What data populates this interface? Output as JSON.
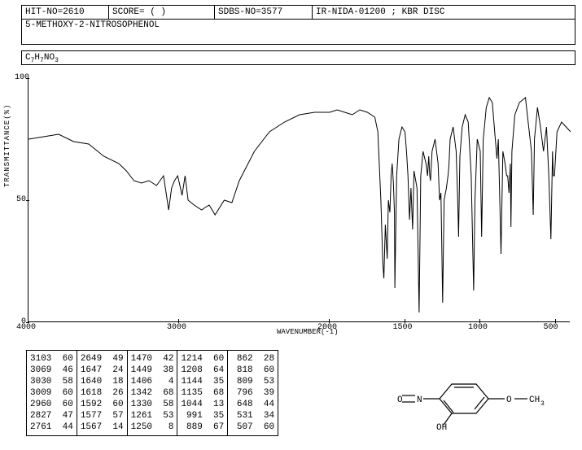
{
  "header": {
    "hit_no": "HIT-NO=2610",
    "score": "SCORE=   (   )",
    "sdbs_no": "SDBS-NO=3577",
    "method": "IR-NIDA-01200 ; KBR DISC"
  },
  "compound_name": "5-METHOXY-2-NITROSOPHENOL",
  "formula": {
    "text": "C7H7NO3",
    "c": "C",
    "c_n": "7",
    "h": "H",
    "h_n": "7",
    "n": "N",
    "o": "O",
    "o_n": "3"
  },
  "chart": {
    "type": "line",
    "xlabel": "WAVENUMBER(-1)",
    "ylabel": "TRANSMITTANCE(%)",
    "xlim": [
      4000,
      400
    ],
    "ylim": [
      0,
      100
    ],
    "yticks": [
      0,
      50,
      100
    ],
    "xticks": [
      4000,
      3000,
      2000,
      1500,
      1000,
      500
    ],
    "line_color": "#000000",
    "background_color": "#ffffff",
    "points": [
      [
        4000,
        75
      ],
      [
        3900,
        76
      ],
      [
        3800,
        77
      ],
      [
        3700,
        74
      ],
      [
        3600,
        73
      ],
      [
        3500,
        68
      ],
      [
        3400,
        65
      ],
      [
        3350,
        62
      ],
      [
        3300,
        58
      ],
      [
        3250,
        57
      ],
      [
        3200,
        58
      ],
      [
        3150,
        56
      ],
      [
        3103,
        60
      ],
      [
        3069,
        46
      ],
      [
        3050,
        55
      ],
      [
        3030,
        58
      ],
      [
        3009,
        60
      ],
      [
        2980,
        52
      ],
      [
        2960,
        60
      ],
      [
        2940,
        50
      ],
      [
        2900,
        48
      ],
      [
        2850,
        46
      ],
      [
        2827,
        47
      ],
      [
        2800,
        48
      ],
      [
        2761,
        44
      ],
      [
        2700,
        50
      ],
      [
        2649,
        49
      ],
      [
        2600,
        58
      ],
      [
        2500,
        70
      ],
      [
        2400,
        78
      ],
      [
        2300,
        82
      ],
      [
        2200,
        85
      ],
      [
        2100,
        86
      ],
      [
        2000,
        86
      ],
      [
        1950,
        87
      ],
      [
        1900,
        86
      ],
      [
        1850,
        85
      ],
      [
        1800,
        87
      ],
      [
        1750,
        86
      ],
      [
        1700,
        84
      ],
      [
        1680,
        78
      ],
      [
        1660,
        50
      ],
      [
        1647,
        24
      ],
      [
        1640,
        18
      ],
      [
        1630,
        40
      ],
      [
        1618,
        26
      ],
      [
        1610,
        50
      ],
      [
        1600,
        45
      ],
      [
        1592,
        60
      ],
      [
        1585,
        65
      ],
      [
        1577,
        57
      ],
      [
        1570,
        45
      ],
      [
        1567,
        14
      ],
      [
        1555,
        60
      ],
      [
        1540,
        75
      ],
      [
        1520,
        80
      ],
      [
        1500,
        78
      ],
      [
        1490,
        70
      ],
      [
        1480,
        60
      ],
      [
        1470,
        42
      ],
      [
        1460,
        55
      ],
      [
        1449,
        38
      ],
      [
        1440,
        62
      ],
      [
        1420,
        55
      ],
      [
        1406,
        4
      ],
      [
        1395,
        60
      ],
      [
        1380,
        70
      ],
      [
        1360,
        65
      ],
      [
        1350,
        60
      ],
      [
        1342,
        68
      ],
      [
        1335,
        60
      ],
      [
        1330,
        58
      ],
      [
        1320,
        70
      ],
      [
        1300,
        75
      ],
      [
        1280,
        65
      ],
      [
        1270,
        50
      ],
      [
        1261,
        53
      ],
      [
        1255,
        30
      ],
      [
        1250,
        8
      ],
      [
        1240,
        50
      ],
      [
        1225,
        55
      ],
      [
        1214,
        60
      ],
      [
        1208,
        64
      ],
      [
        1200,
        75
      ],
      [
        1180,
        80
      ],
      [
        1160,
        70
      ],
      [
        1150,
        50
      ],
      [
        1144,
        35
      ],
      [
        1140,
        50
      ],
      [
        1135,
        68
      ],
      [
        1120,
        80
      ],
      [
        1100,
        85
      ],
      [
        1080,
        82
      ],
      [
        1060,
        60
      ],
      [
        1050,
        30
      ],
      [
        1044,
        13
      ],
      [
        1035,
        50
      ],
      [
        1020,
        75
      ],
      [
        1000,
        70
      ],
      [
        991,
        35
      ],
      [
        980,
        75
      ],
      [
        960,
        88
      ],
      [
        940,
        92
      ],
      [
        920,
        90
      ],
      [
        900,
        75
      ],
      [
        889,
        67
      ],
      [
        880,
        75
      ],
      [
        870,
        50
      ],
      [
        862,
        28
      ],
      [
        850,
        70
      ],
      [
        835,
        65
      ],
      [
        825,
        60
      ],
      [
        818,
        60
      ],
      [
        809,
        53
      ],
      [
        800,
        65
      ],
      [
        796,
        39
      ],
      [
        790,
        70
      ],
      [
        770,
        85
      ],
      [
        740,
        90
      ],
      [
        700,
        92
      ],
      [
        660,
        70
      ],
      [
        648,
        44
      ],
      [
        640,
        75
      ],
      [
        620,
        88
      ],
      [
        600,
        80
      ],
      [
        580,
        70
      ],
      [
        560,
        80
      ],
      [
        545,
        60
      ],
      [
        531,
        34
      ],
      [
        520,
        70
      ],
      [
        515,
        60
      ],
      [
        507,
        60
      ],
      [
        490,
        78
      ],
      [
        460,
        82
      ],
      [
        430,
        80
      ],
      [
        400,
        78
      ]
    ]
  },
  "peak_table": {
    "columns": [
      [
        [
          3103,
          60
        ],
        [
          3069,
          46
        ],
        [
          3030,
          58
        ],
        [
          3009,
          60
        ],
        [
          2960,
          60
        ],
        [
          2827,
          47
        ],
        [
          2761,
          44
        ]
      ],
      [
        [
          2649,
          49
        ],
        [
          1647,
          24
        ],
        [
          1640,
          18
        ],
        [
          1618,
          26
        ],
        [
          1592,
          60
        ],
        [
          1577,
          57
        ],
        [
          1567,
          14
        ]
      ],
      [
        [
          1470,
          42
        ],
        [
          1449,
          38
        ],
        [
          1406,
          4
        ],
        [
          1342,
          68
        ],
        [
          1330,
          58
        ],
        [
          1261,
          53
        ],
        [
          1250,
          8
        ]
      ],
      [
        [
          1214,
          60
        ],
        [
          1208,
          64
        ],
        [
          1144,
          35
        ],
        [
          1135,
          68
        ],
        [
          1044,
          13
        ],
        [
          991,
          35
        ],
        [
          889,
          67
        ]
      ],
      [
        [
          862,
          28
        ],
        [
          818,
          60
        ],
        [
          809,
          53
        ],
        [
          796,
          39
        ],
        [
          648,
          44
        ],
        [
          531,
          34
        ],
        [
          507,
          60
        ]
      ]
    ]
  },
  "molecule": {
    "labels": {
      "no": "N",
      "o_dbl": "O",
      "oh": "OH",
      "och3": "CH",
      "o_ether": "O",
      "three": "3"
    }
  }
}
